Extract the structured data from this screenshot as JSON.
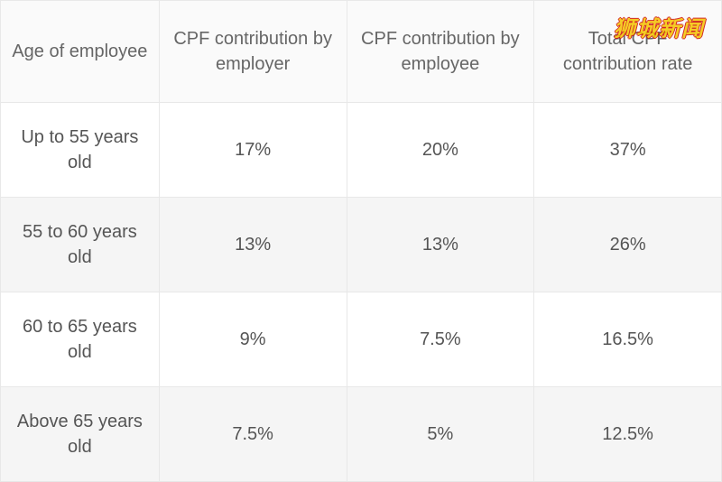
{
  "table": {
    "columns": [
      "Age of employee",
      "CPF contribution by employer",
      "CPF contribution by employee",
      "Total CPF contribution rate"
    ],
    "rows": [
      [
        "Up to 55 years old",
        "17%",
        "20%",
        "37%"
      ],
      [
        "55 to 60 years old",
        "13%",
        "13%",
        "26%"
      ],
      [
        "60 to 65 years old",
        "9%",
        "7.5%",
        "16.5%"
      ],
      [
        "Above 65 years old",
        "7.5%",
        "5%",
        "12.5%"
      ]
    ],
    "header_bg": "#fafafa",
    "row_odd_bg": "#ffffff",
    "row_even_bg": "#f5f5f5",
    "border_color": "#e8e8e8",
    "text_color": "#555555",
    "font_size": 20
  },
  "watermark": {
    "text": "狮城新闻",
    "color": "#f5c400"
  }
}
